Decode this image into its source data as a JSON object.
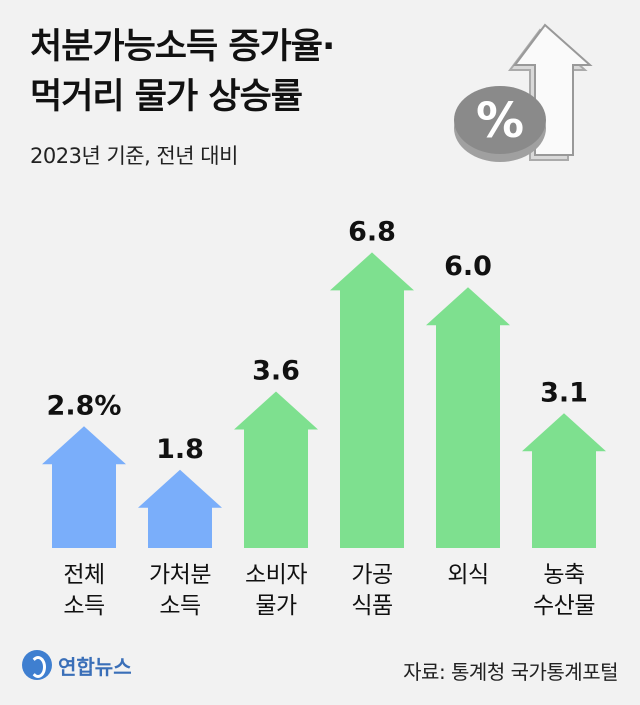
{
  "header": {
    "title_line1": "처분가능소득 증가율·",
    "title_line2": "먹거리 물가 상승률",
    "subtitle": "2023년 기준, 전년 대비"
  },
  "icons": {
    "percent": "percent-icon",
    "up_arrow": "up-arrow-icon"
  },
  "colors": {
    "blue": "#7aaefa",
    "green": "#7ee08f",
    "icon_gray": "#8a8a8a"
  },
  "footer": {
    "logo_text": "연합뉴스",
    "source": "자료: 통계청 국가통계포털"
  },
  "chart_data": {
    "type": "bar",
    "categories": [
      [
        "전체",
        "소득"
      ],
      [
        "가처분",
        "소득"
      ],
      [
        "소비자",
        "물가"
      ],
      [
        "가공",
        "식품"
      ],
      [
        "외식"
      ],
      [
        "농축",
        "수산물"
      ]
    ],
    "values": [
      2.8,
      1.8,
      3.6,
      6.8,
      6.0,
      3.1
    ],
    "value_labels": [
      "2.8%",
      "1.8",
      "3.6",
      "6.8",
      "6.0",
      "3.1"
    ],
    "bar_colors": [
      "#7aaefa",
      "#7aaefa",
      "#7ee08f",
      "#7ee08f",
      "#7ee08f",
      "#7ee08f"
    ],
    "ylim": [
      0,
      7.5
    ],
    "grid": false,
    "legend": "none"
  }
}
